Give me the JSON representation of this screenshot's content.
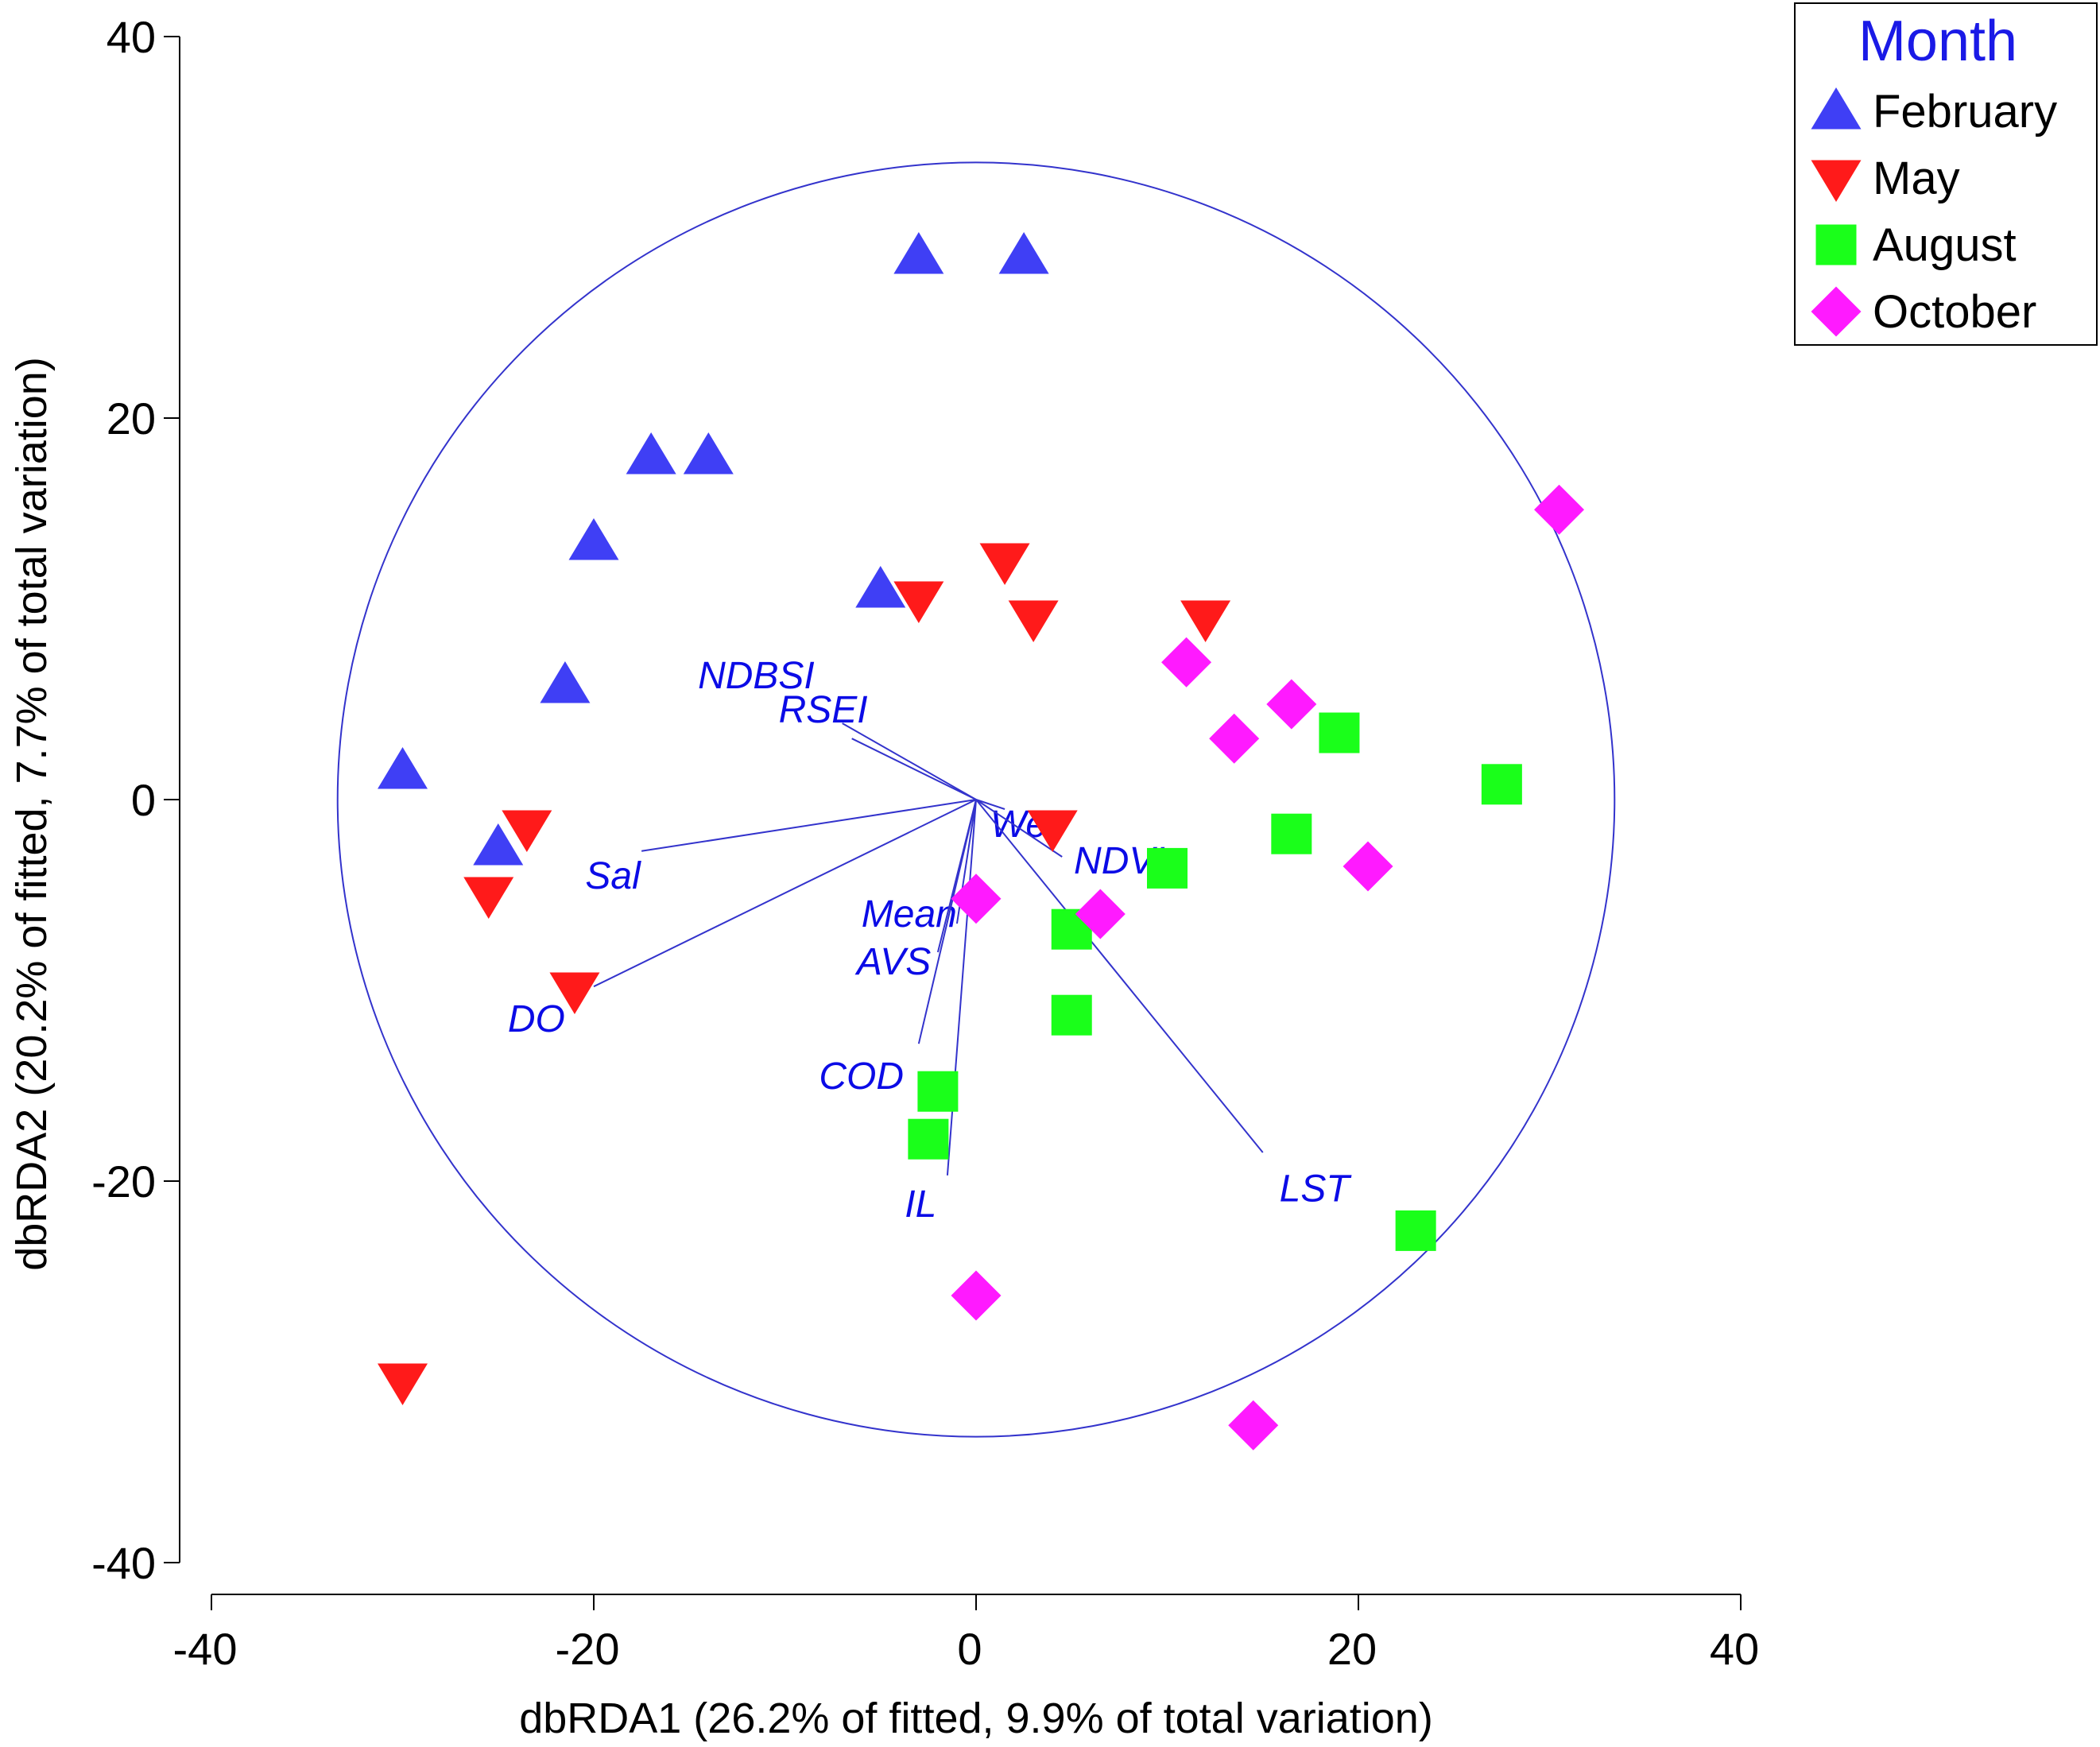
{
  "chart_data": {
    "type": "scatter",
    "title": "",
    "xlabel": "dbRDA1 (26.2% of fitted, 9.9% of total variation)",
    "ylabel": "dbRDA2 (20.2% of fitted, 7.7% of total variation)",
    "xlim": [
      -40,
      40
    ],
    "ylim": [
      -40,
      40
    ],
    "xticks": [
      -40,
      -20,
      0,
      20,
      40
    ],
    "yticks": [
      -40,
      -20,
      0,
      20,
      40
    ],
    "xtick_labels": [
      "-40",
      "-20",
      "0",
      "20",
      "40"
    ],
    "ytick_labels": [
      "-40",
      "-20",
      "0",
      "20",
      "40"
    ],
    "grid": false,
    "legend": {
      "title": "Month",
      "placement": "top-right",
      "title_color": "#1a1ae6"
    },
    "circle": {
      "center": [
        0,
        0
      ],
      "radius": 33.4,
      "color": "#3333cc"
    },
    "series": [
      {
        "name": "February",
        "marker": "triangle-up",
        "color": "#3f3ff5",
        "points": [
          [
            -30,
            1.5
          ],
          [
            -25,
            -2.5
          ],
          [
            -21.5,
            6
          ],
          [
            -20,
            13.5
          ],
          [
            -17,
            18
          ],
          [
            -14,
            18
          ],
          [
            -5,
            11
          ],
          [
            -3,
            28.5
          ],
          [
            2.5,
            28.5
          ]
        ]
      },
      {
        "name": "May",
        "marker": "triangle-down",
        "color": "#ff1a1a",
        "points": [
          [
            -23.5,
            -1.5
          ],
          [
            -25.5,
            -5
          ],
          [
            -21,
            -10
          ],
          [
            -30,
            -30.5
          ],
          [
            -3,
            10.5
          ],
          [
            1.5,
            12.5
          ],
          [
            3,
            9.5
          ],
          [
            4,
            -1.5
          ],
          [
            12,
            9.5
          ]
        ]
      },
      {
        "name": "August",
        "marker": "square",
        "color": "#1aff1a",
        "points": [
          [
            19,
            3.5
          ],
          [
            27.5,
            0.8
          ],
          [
            16.5,
            -1.8
          ],
          [
            10,
            -3.6
          ],
          [
            5,
            -6.8
          ],
          [
            5,
            -11.3
          ],
          [
            -2,
            -15.3
          ],
          [
            -2.5,
            -17.8
          ],
          [
            23,
            -22.6
          ]
        ]
      },
      {
        "name": "October",
        "marker": "diamond",
        "color": "#ff1aff",
        "points": [
          [
            30.5,
            15.2
          ],
          [
            11,
            7.2
          ],
          [
            13.5,
            3.2
          ],
          [
            16.5,
            5
          ],
          [
            20.5,
            -3.5
          ],
          [
            6.5,
            -6
          ],
          [
            0,
            -5.2
          ],
          [
            0,
            -26
          ],
          [
            14.5,
            -32.8
          ]
        ]
      }
    ],
    "vectors": [
      {
        "label": "NDBSI",
        "end": [
          -7,
          4
        ],
        "label_pos": [
          -11.5,
          6.5
        ]
      },
      {
        "label": "RSEI",
        "end": [
          -6.5,
          3.2
        ],
        "label_pos": [
          -8,
          4.7
        ]
      },
      {
        "label": "Wet",
        "end": [
          1.5,
          -0.5
        ],
        "label_pos": [
          2.5,
          -1.3
        ]
      },
      {
        "label": "NDVI",
        "end": [
          4.5,
          -3
        ],
        "label_pos": [
          7.5,
          -3.2
        ]
      },
      {
        "label": "Sal",
        "end": [
          -17.5,
          -2.7
        ],
        "label_pos": [
          -19,
          -4
        ]
      },
      {
        "label": "DO",
        "end": [
          -20,
          -9.8
        ],
        "label_pos": [
          -23,
          -11.5
        ]
      },
      {
        "label": "Mean",
        "end": [
          -1,
          -6.5
        ],
        "label_pos": [
          -3.5,
          -6
        ]
      },
      {
        "label": "AVS",
        "end": [
          -2,
          -8
        ],
        "label_pos": [
          -4.3,
          -8.5
        ]
      },
      {
        "label": "COD",
        "end": [
          -3,
          -12.8
        ],
        "label_pos": [
          -6,
          -14.5
        ]
      },
      {
        "label": "IL",
        "end": [
          -1.5,
          -19.7
        ],
        "label_pos": [
          -2.9,
          -21.2
        ]
      },
      {
        "label": "LST",
        "end": [
          15,
          -18.5
        ],
        "label_pos": [
          17.7,
          -20.4
        ]
      }
    ]
  }
}
